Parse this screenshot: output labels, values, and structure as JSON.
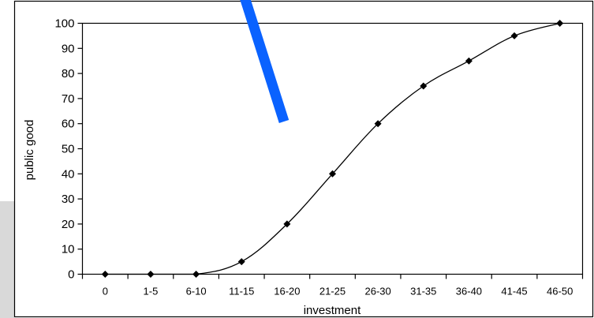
{
  "chart_data": {
    "type": "line",
    "title": "",
    "xlabel": "investment",
    "ylabel": "public good",
    "categories": [
      "0",
      "1-5",
      "6-10",
      "11-15",
      "16-20",
      "21-25",
      "26-30",
      "31-35",
      "36-40",
      "41-45",
      "46-50"
    ],
    "series": [
      {
        "values": [
          0,
          0,
          0,
          5,
          20,
          40,
          60,
          75,
          85,
          95,
          100
        ]
      }
    ],
    "ylim": [
      0,
      100
    ],
    "yticks": [
      0,
      10,
      20,
      30,
      40,
      50,
      60,
      70,
      80,
      90,
      100
    ],
    "grid": false,
    "legend": "none",
    "colors": {
      "line": "#000000",
      "marker": "#000000",
      "overlay_stroke": "#0a62ff",
      "side_panel": "#d9d9d9"
    }
  }
}
